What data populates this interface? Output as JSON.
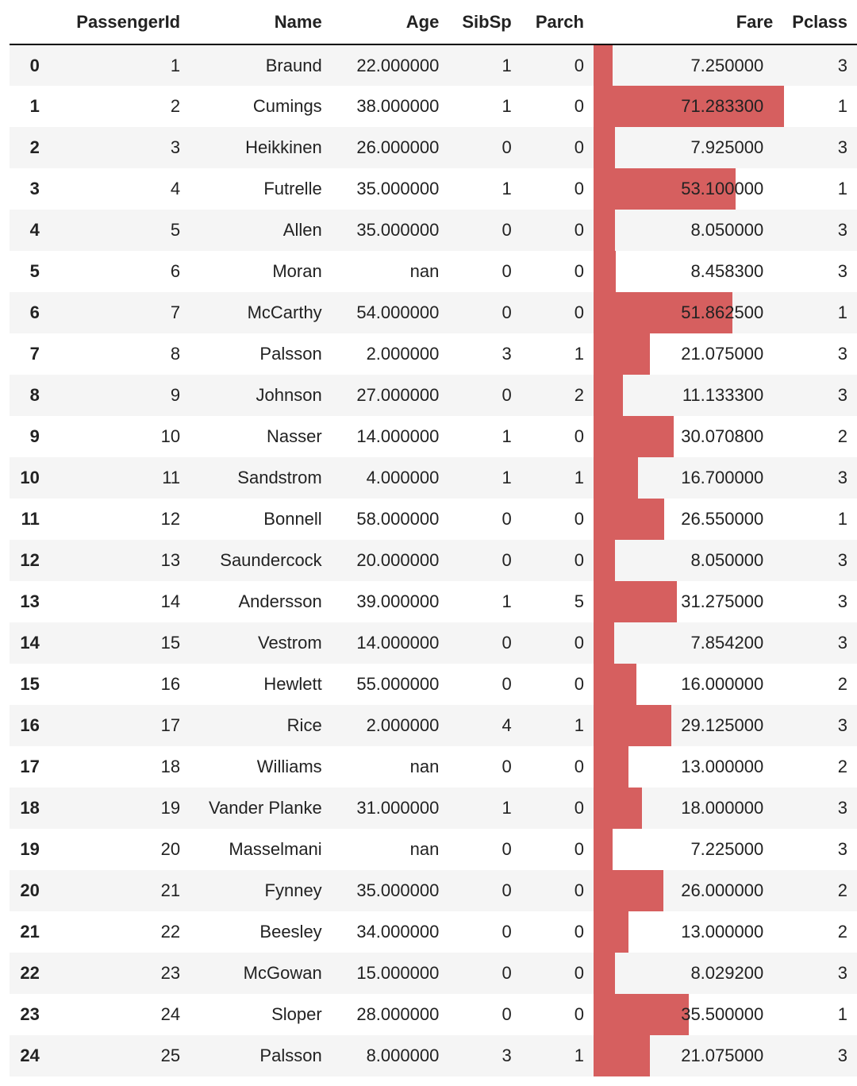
{
  "table": {
    "columns": {
      "index": "",
      "passengerid": "PassengerId",
      "name": "Name",
      "age": "Age",
      "sibsp": "SibSp",
      "parch": "Parch",
      "fare": "Fare",
      "pclass": "Pclass"
    },
    "bar_color": "#d65f5f",
    "stripe_color": "#f5f5f5",
    "fare_bar_max": 71.2833,
    "rows": [
      {
        "index": "0",
        "passengerid": "1",
        "name": "Braund",
        "age": "22.000000",
        "sibsp": "1",
        "parch": "0",
        "fare": "7.250000",
        "fare_num": 7.25,
        "pclass": "3"
      },
      {
        "index": "1",
        "passengerid": "2",
        "name": "Cumings",
        "age": "38.000000",
        "sibsp": "1",
        "parch": "0",
        "fare": "71.283300",
        "fare_num": 71.2833,
        "pclass": "1"
      },
      {
        "index": "2",
        "passengerid": "3",
        "name": "Heikkinen",
        "age": "26.000000",
        "sibsp": "0",
        "parch": "0",
        "fare": "7.925000",
        "fare_num": 7.925,
        "pclass": "3"
      },
      {
        "index": "3",
        "passengerid": "4",
        "name": "Futrelle",
        "age": "35.000000",
        "sibsp": "1",
        "parch": "0",
        "fare": "53.100000",
        "fare_num": 53.1,
        "pclass": "1"
      },
      {
        "index": "4",
        "passengerid": "5",
        "name": "Allen",
        "age": "35.000000",
        "sibsp": "0",
        "parch": "0",
        "fare": "8.050000",
        "fare_num": 8.05,
        "pclass": "3"
      },
      {
        "index": "5",
        "passengerid": "6",
        "name": "Moran",
        "age": "nan",
        "sibsp": "0",
        "parch": "0",
        "fare": "8.458300",
        "fare_num": 8.4583,
        "pclass": "3"
      },
      {
        "index": "6",
        "passengerid": "7",
        "name": "McCarthy",
        "age": "54.000000",
        "sibsp": "0",
        "parch": "0",
        "fare": "51.862500",
        "fare_num": 51.8625,
        "pclass": "1"
      },
      {
        "index": "7",
        "passengerid": "8",
        "name": "Palsson",
        "age": "2.000000",
        "sibsp": "3",
        "parch": "1",
        "fare": "21.075000",
        "fare_num": 21.075,
        "pclass": "3"
      },
      {
        "index": "8",
        "passengerid": "9",
        "name": "Johnson",
        "age": "27.000000",
        "sibsp": "0",
        "parch": "2",
        "fare": "11.133300",
        "fare_num": 11.1333,
        "pclass": "3"
      },
      {
        "index": "9",
        "passengerid": "10",
        "name": "Nasser",
        "age": "14.000000",
        "sibsp": "1",
        "parch": "0",
        "fare": "30.070800",
        "fare_num": 30.0708,
        "pclass": "2"
      },
      {
        "index": "10",
        "passengerid": "11",
        "name": "Sandstrom",
        "age": "4.000000",
        "sibsp": "1",
        "parch": "1",
        "fare": "16.700000",
        "fare_num": 16.7,
        "pclass": "3"
      },
      {
        "index": "11",
        "passengerid": "12",
        "name": "Bonnell",
        "age": "58.000000",
        "sibsp": "0",
        "parch": "0",
        "fare": "26.550000",
        "fare_num": 26.55,
        "pclass": "1"
      },
      {
        "index": "12",
        "passengerid": "13",
        "name": "Saundercock",
        "age": "20.000000",
        "sibsp": "0",
        "parch": "0",
        "fare": "8.050000",
        "fare_num": 8.05,
        "pclass": "3"
      },
      {
        "index": "13",
        "passengerid": "14",
        "name": "Andersson",
        "age": "39.000000",
        "sibsp": "1",
        "parch": "5",
        "fare": "31.275000",
        "fare_num": 31.275,
        "pclass": "3"
      },
      {
        "index": "14",
        "passengerid": "15",
        "name": "Vestrom",
        "age": "14.000000",
        "sibsp": "0",
        "parch": "0",
        "fare": "7.854200",
        "fare_num": 7.8542,
        "pclass": "3"
      },
      {
        "index": "15",
        "passengerid": "16",
        "name": "Hewlett",
        "age": "55.000000",
        "sibsp": "0",
        "parch": "0",
        "fare": "16.000000",
        "fare_num": 16.0,
        "pclass": "2"
      },
      {
        "index": "16",
        "passengerid": "17",
        "name": "Rice",
        "age": "2.000000",
        "sibsp": "4",
        "parch": "1",
        "fare": "29.125000",
        "fare_num": 29.125,
        "pclass": "3"
      },
      {
        "index": "17",
        "passengerid": "18",
        "name": "Williams",
        "age": "nan",
        "sibsp": "0",
        "parch": "0",
        "fare": "13.000000",
        "fare_num": 13.0,
        "pclass": "2"
      },
      {
        "index": "18",
        "passengerid": "19",
        "name": "Vander Planke",
        "age": "31.000000",
        "sibsp": "1",
        "parch": "0",
        "fare": "18.000000",
        "fare_num": 18.0,
        "pclass": "3"
      },
      {
        "index": "19",
        "passengerid": "20",
        "name": "Masselmani",
        "age": "nan",
        "sibsp": "0",
        "parch": "0",
        "fare": "7.225000",
        "fare_num": 7.225,
        "pclass": "3"
      },
      {
        "index": "20",
        "passengerid": "21",
        "name": "Fynney",
        "age": "35.000000",
        "sibsp": "0",
        "parch": "0",
        "fare": "26.000000",
        "fare_num": 26.0,
        "pclass": "2"
      },
      {
        "index": "21",
        "passengerid": "22",
        "name": "Beesley",
        "age": "34.000000",
        "sibsp": "0",
        "parch": "0",
        "fare": "13.000000",
        "fare_num": 13.0,
        "pclass": "2"
      },
      {
        "index": "22",
        "passengerid": "23",
        "name": "McGowan",
        "age": "15.000000",
        "sibsp": "0",
        "parch": "0",
        "fare": "8.029200",
        "fare_num": 8.0292,
        "pclass": "3"
      },
      {
        "index": "23",
        "passengerid": "24",
        "name": "Sloper",
        "age": "28.000000",
        "sibsp": "0",
        "parch": "0",
        "fare": "35.500000",
        "fare_num": 35.5,
        "pclass": "1"
      },
      {
        "index": "24",
        "passengerid": "25",
        "name": "Palsson",
        "age": "8.000000",
        "sibsp": "3",
        "parch": "1",
        "fare": "21.075000",
        "fare_num": 21.075,
        "pclass": "3"
      }
    ]
  }
}
